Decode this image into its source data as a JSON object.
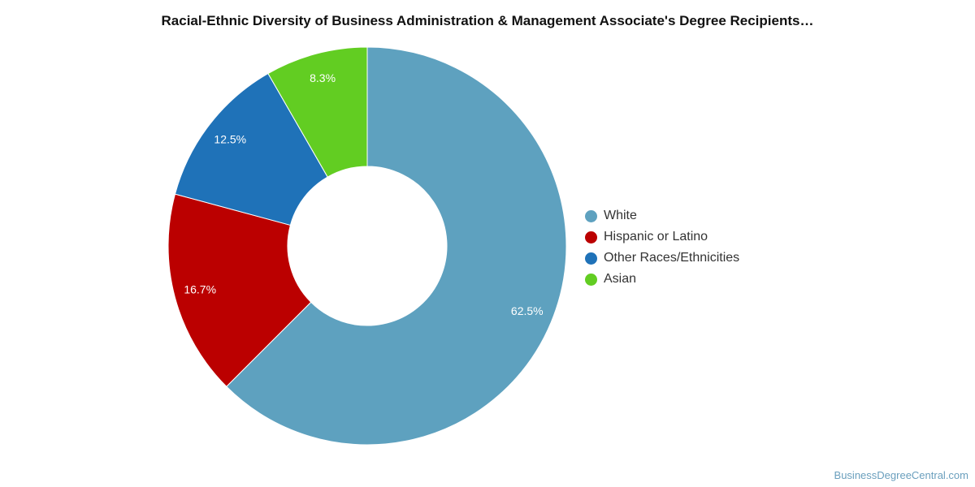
{
  "chart_data": {
    "type": "pie",
    "title": "Racial-Ethnic Diversity of Business Administration & Management Associate's Degree Recipients…",
    "slices": [
      {
        "name": "White",
        "value": 62.5,
        "label": "62.5%",
        "color": "#5ea1bf"
      },
      {
        "name": "Hispanic or Latino",
        "value": 16.7,
        "label": "16.7%",
        "color": "#bb0000"
      },
      {
        "name": "Other Races/Ethnicities",
        "value": 12.5,
        "label": "12.5%",
        "color": "#1f72b8"
      },
      {
        "name": "Asian",
        "value": 8.3,
        "label": "8.3%",
        "color": "#62cd22"
      }
    ],
    "donut": true,
    "legend_position": "right"
  },
  "source": "BusinessDegreeCentral.com"
}
